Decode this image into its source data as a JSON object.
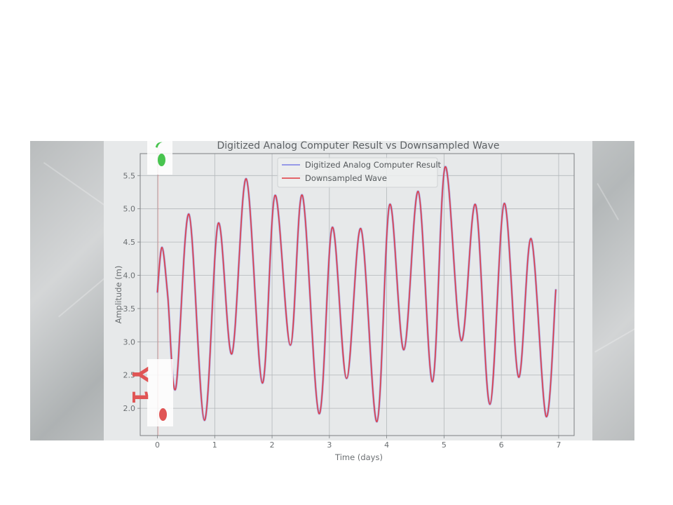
{
  "chart_data": {
    "type": "line",
    "title": "Digitized Analog Computer Result vs Downsampled Wave",
    "xlabel": "Time (days)",
    "ylabel": "Amplitude (m)",
    "xlim": [
      -0.3,
      7.27
    ],
    "ylim": [
      1.59,
      5.83
    ],
    "xticks": [
      0,
      1,
      2,
      3,
      4,
      5,
      6,
      7
    ],
    "yticks": [
      2.0,
      2.5,
      3.0,
      3.5,
      4.0,
      4.5,
      5.0,
      5.5
    ],
    "grid": true,
    "legend_position": "top-center",
    "series": [
      {
        "name": "Digitized Analog Computer Result",
        "color": "#7b7fe6",
        "x": [
          0.0,
          0.08,
          0.18,
          0.32,
          0.55,
          0.82,
          1.06,
          1.3,
          1.55,
          1.83,
          2.05,
          2.32,
          2.53,
          2.82,
          3.05,
          3.3,
          3.55,
          3.83,
          4.05,
          4.3,
          4.55,
          4.8,
          5.02,
          5.3,
          5.55,
          5.8,
          6.05,
          6.3,
          6.52,
          6.78,
          6.95
        ],
        "y": [
          3.75,
          4.42,
          3.7,
          2.3,
          4.92,
          1.82,
          4.78,
          2.82,
          5.45,
          2.38,
          5.2,
          2.95,
          5.2,
          1.92,
          4.72,
          2.45,
          4.7,
          1.8,
          5.06,
          2.88,
          5.26,
          2.4,
          5.63,
          3.02,
          5.06,
          2.06,
          5.08,
          2.47,
          4.55,
          1.88,
          3.78
        ]
      },
      {
        "name": "Downsampled Wave",
        "color": "#e0393e",
        "x": [
          0.0,
          0.08,
          0.18,
          0.32,
          0.55,
          0.82,
          1.06,
          1.3,
          1.55,
          1.83,
          2.05,
          2.32,
          2.53,
          2.82,
          3.05,
          3.3,
          3.55,
          3.83,
          4.05,
          4.3,
          4.55,
          4.8,
          5.02,
          5.3,
          5.55,
          5.8,
          6.05,
          6.3,
          6.52,
          6.78,
          6.95
        ],
        "y": [
          3.75,
          4.42,
          3.7,
          2.3,
          4.92,
          1.82,
          4.78,
          2.82,
          5.45,
          2.38,
          5.2,
          2.95,
          5.2,
          1.92,
          4.72,
          2.45,
          4.7,
          1.8,
          5.06,
          2.88,
          5.26,
          2.4,
          5.63,
          3.02,
          5.06,
          2.06,
          5.08,
          2.47,
          4.55,
          1.88,
          3.78
        ]
      }
    ]
  },
  "photo_markers": {
    "bottom_label": "Y 1",
    "green_marker_color": "#48c44f",
    "red_marker_color": "#e05555"
  }
}
